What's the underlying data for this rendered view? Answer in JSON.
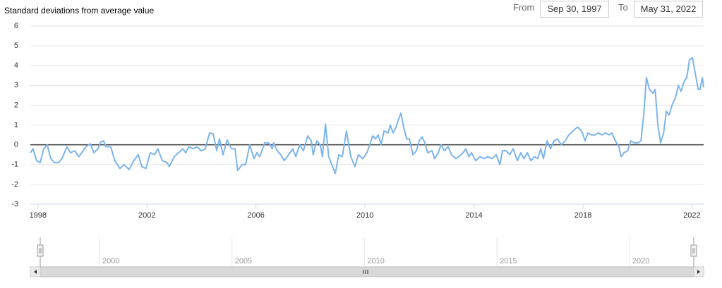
{
  "range_selector": {
    "from_label": "From",
    "from": "Sep 30, 1997",
    "to_label": "To",
    "to": "May 31, 2022"
  },
  "chart_data": {
    "type": "line",
    "y_title": "Standard deviations from average value",
    "color": "#7cb5ec",
    "grid": true,
    "xlim": [
      1997.72,
      2022.43
    ],
    "xticks": [
      1998,
      2002,
      2006,
      2010,
      2014,
      2018,
      2022
    ],
    "ylim": [
      -3,
      6
    ],
    "yticks": [
      -3,
      -2,
      -1,
      0,
      1,
      2,
      3,
      4,
      5,
      6
    ],
    "navigator_xlim": [
      1997.39,
      2022.8
    ],
    "navigator_xticks": [
      2000,
      2005,
      2010,
      2015,
      2020
    ],
    "x": [
      1997.72,
      1997.82,
      1997.95,
      1998.08,
      1998.21,
      1998.34,
      1998.47,
      1998.6,
      1998.75,
      1998.88,
      1999.06,
      1999.19,
      1999.35,
      1999.5,
      1999.76,
      1999.92,
      2000.05,
      2000.2,
      2000.31,
      2000.41,
      2000.49,
      2000.67,
      2000.82,
      2001.01,
      2001.16,
      2001.34,
      2001.52,
      2001.68,
      2001.81,
      2001.96,
      2002.12,
      2002.28,
      2002.4,
      2002.56,
      2002.74,
      2002.82,
      2003.0,
      2003.16,
      2003.31,
      2003.42,
      2003.54,
      2003.7,
      2003.83,
      2003.99,
      2004.14,
      2004.3,
      2004.43,
      2004.56,
      2004.66,
      2004.79,
      2004.94,
      2005.1,
      2005.23,
      2005.33,
      2005.49,
      2005.62,
      2005.77,
      2005.93,
      2006.03,
      2006.14,
      2006.32,
      2006.47,
      2006.6,
      2006.65,
      2006.78,
      2006.91,
      2007.04,
      2007.2,
      2007.35,
      2007.46,
      2007.61,
      2007.74,
      2007.9,
      2008.03,
      2008.1,
      2008.23,
      2008.36,
      2008.44,
      2008.55,
      2008.67,
      2008.91,
      2009.04,
      2009.17,
      2009.32,
      2009.48,
      2009.63,
      2009.76,
      2009.92,
      2010.07,
      2010.18,
      2010.28,
      2010.39,
      2010.49,
      2010.59,
      2010.7,
      2010.85,
      2010.93,
      2011.03,
      2011.14,
      2011.21,
      2011.32,
      2011.42,
      2011.53,
      2011.63,
      2011.76,
      2011.89,
      2011.99,
      2012.1,
      2012.2,
      2012.3,
      2012.46,
      2012.56,
      2012.69,
      2012.79,
      2012.92,
      2013.05,
      2013.18,
      2013.34,
      2013.44,
      2013.6,
      2013.7,
      2013.81,
      2013.91,
      2014.06,
      2014.22,
      2014.38,
      2014.5,
      2014.66,
      2014.82,
      2014.95,
      2015.05,
      2015.18,
      2015.31,
      2015.44,
      2015.59,
      2015.72,
      2015.83,
      2015.96,
      2016.09,
      2016.22,
      2016.34,
      2016.45,
      2016.55,
      2016.68,
      2016.81,
      2016.94,
      2017.07,
      2017.2,
      2017.35,
      2017.48,
      2017.64,
      2017.8,
      2017.95,
      2018.08,
      2018.18,
      2018.31,
      2018.44,
      2018.57,
      2018.7,
      2018.83,
      2018.96,
      2019.06,
      2019.19,
      2019.32,
      2019.4,
      2019.51,
      2019.64,
      2019.76,
      2019.87,
      2020.02,
      2020.13,
      2020.23,
      2020.33,
      2020.44,
      2020.57,
      2020.65,
      2020.75,
      2020.85,
      2020.96,
      2021.06,
      2021.16,
      2021.27,
      2021.4,
      2021.5,
      2021.6,
      2021.71,
      2021.81,
      2021.91,
      2022.02,
      2022.15,
      2022.23,
      2022.3,
      2022.38,
      2022.43
    ],
    "values": [
      -0.4,
      -0.2,
      -0.8,
      -0.9,
      -0.2,
      0.0,
      -0.7,
      -0.9,
      -0.9,
      -0.7,
      -0.1,
      -0.4,
      -0.3,
      -0.6,
      -0.1,
      0.05,
      -0.4,
      -0.2,
      0.15,
      0.2,
      -0.1,
      -0.1,
      -0.8,
      -1.2,
      -1.0,
      -1.25,
      -0.8,
      -0.5,
      -1.1,
      -1.2,
      -0.4,
      -0.5,
      -0.2,
      -0.8,
      -0.9,
      -1.1,
      -0.6,
      -0.4,
      -0.2,
      -0.4,
      -0.1,
      -0.2,
      -0.1,
      -0.3,
      -0.2,
      0.6,
      0.55,
      -0.3,
      0.3,
      -0.5,
      0.25,
      -0.2,
      -0.2,
      -1.3,
      -1.0,
      -1.0,
      0.0,
      -0.7,
      -0.4,
      -0.6,
      0.1,
      0.1,
      -0.2,
      0.1,
      -0.3,
      -0.5,
      -0.8,
      -0.5,
      -0.2,
      -0.6,
      0.0,
      -0.3,
      0.45,
      0.2,
      -0.5,
      0.2,
      0.0,
      -0.6,
      1.05,
      -0.6,
      -1.45,
      -0.5,
      -0.6,
      0.7,
      -0.6,
      -1.1,
      -0.5,
      -0.7,
      -0.4,
      0.0,
      0.45,
      0.3,
      0.5,
      0.0,
      0.7,
      0.6,
      1.0,
      0.6,
      0.9,
      1.2,
      1.6,
      0.9,
      0.3,
      0.3,
      -0.5,
      -0.3,
      0.2,
      0.4,
      0.1,
      -0.4,
      -0.3,
      -0.7,
      -0.4,
      0.0,
      -0.3,
      -0.1,
      -0.5,
      -0.7,
      -0.6,
      -0.4,
      -0.2,
      -0.6,
      -0.4,
      -0.8,
      -0.6,
      -0.7,
      -0.6,
      -0.7,
      -0.5,
      -1.0,
      -0.3,
      -0.3,
      -0.5,
      -0.2,
      -0.8,
      -0.4,
      -0.7,
      -0.4,
      -0.8,
      -0.6,
      -0.7,
      -0.2,
      -0.7,
      0.2,
      -0.2,
      0.2,
      0.3,
      0.0,
      0.2,
      0.5,
      0.7,
      0.9,
      0.7,
      0.2,
      0.6,
      0.5,
      0.5,
      0.6,
      0.5,
      0.6,
      0.5,
      0.6,
      0.2,
      -0.1,
      -0.6,
      -0.4,
      -0.3,
      0.2,
      0.1,
      0.1,
      0.2,
      1.5,
      3.4,
      2.8,
      2.6,
      2.8,
      1.0,
      0.1,
      0.6,
      1.7,
      1.5,
      2.0,
      2.4,
      3.0,
      2.7,
      3.2,
      3.4,
      4.3,
      4.4,
      3.4,
      2.8,
      2.8,
      3.4,
      2.9
    ]
  }
}
